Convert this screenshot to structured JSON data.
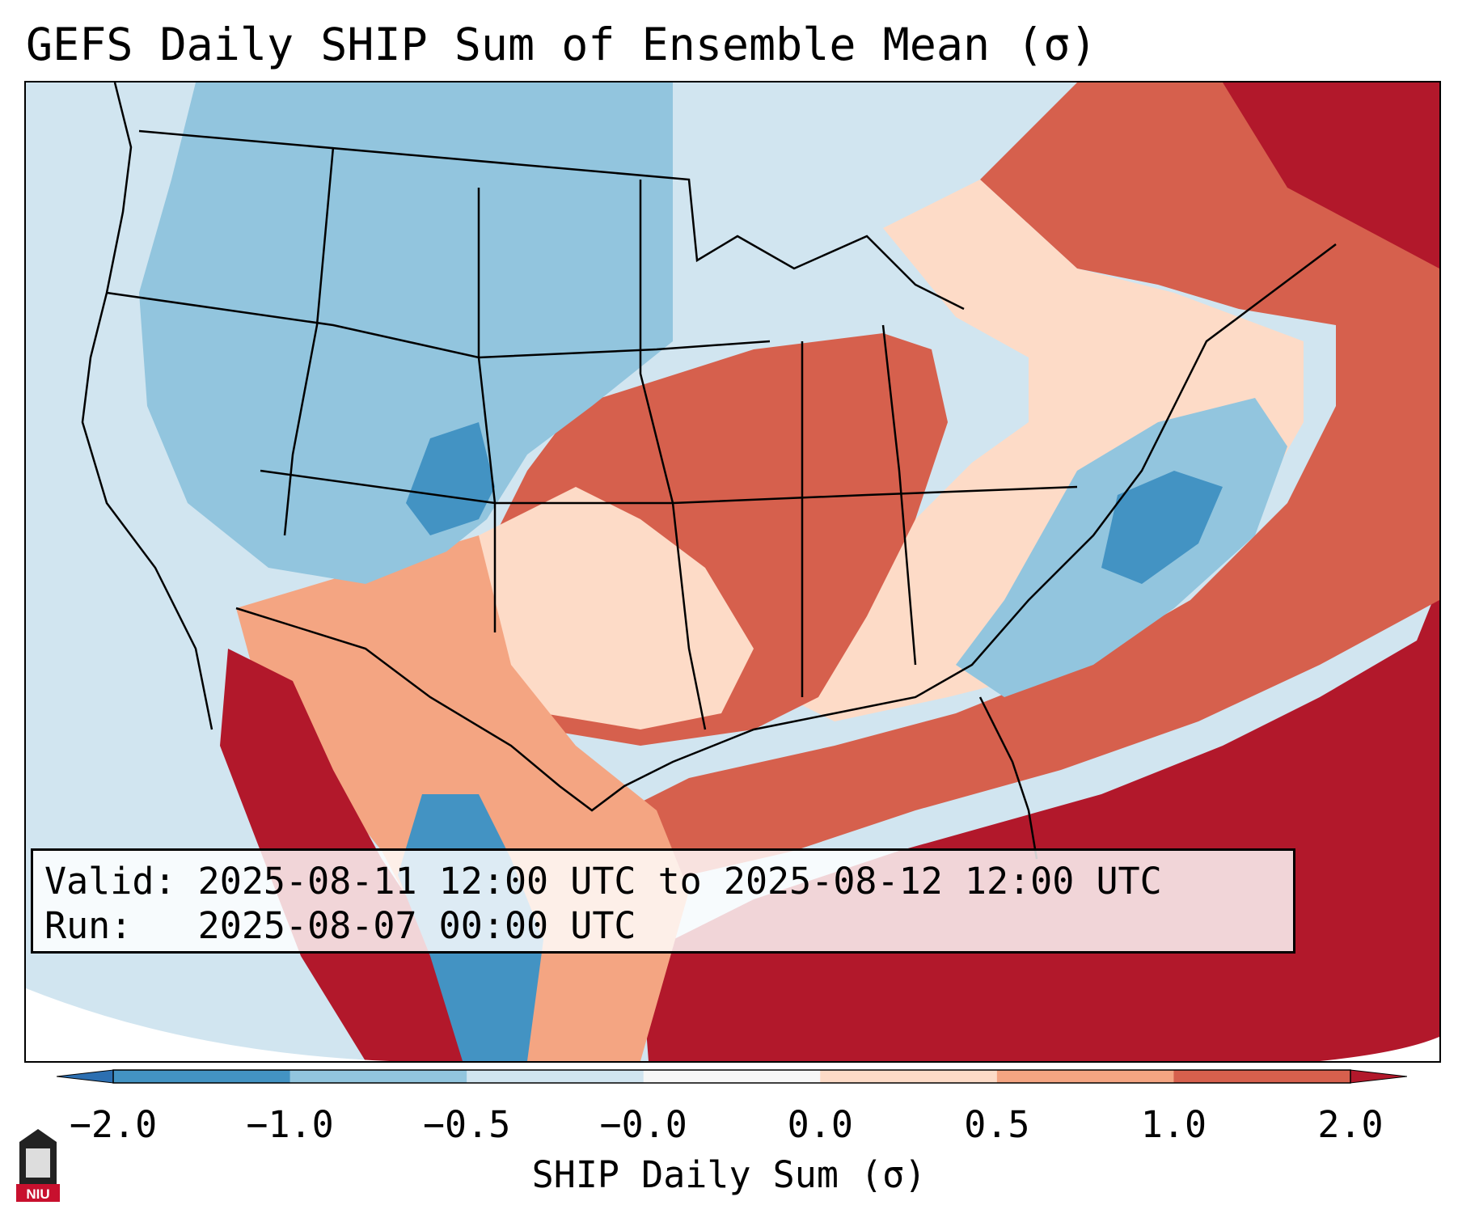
{
  "title": "GEFS Daily SHIP Sum of Ensemble Mean (σ)",
  "info": {
    "valid_label": "Valid:",
    "valid_value": "2025-08-11 12:00 UTC to 2025-08-12 12:00 UTC",
    "run_label": "Run:",
    "run_value": "2025-08-07 00:00 UTC"
  },
  "colorbar": {
    "label": "SHIP Daily Sum (σ)",
    "ticks": [
      "−2.0",
      "−1.0",
      "−0.5",
      "−0.0",
      "0.0",
      "0.5",
      "1.0",
      "2.0"
    ],
    "colors": [
      "#2c6fb1",
      "#4393c3",
      "#92c5de",
      "#d1e5f0",
      "#f7f7f7",
      "#fddbc7",
      "#f4a582",
      "#d6604d",
      "#b2182b"
    ]
  },
  "map": {
    "region": "Contiguous United States",
    "background_color": "#d1e5f0",
    "border_color": "#000000"
  },
  "logo": {
    "text": "NIU",
    "icon": "niu-building-logo"
  }
}
